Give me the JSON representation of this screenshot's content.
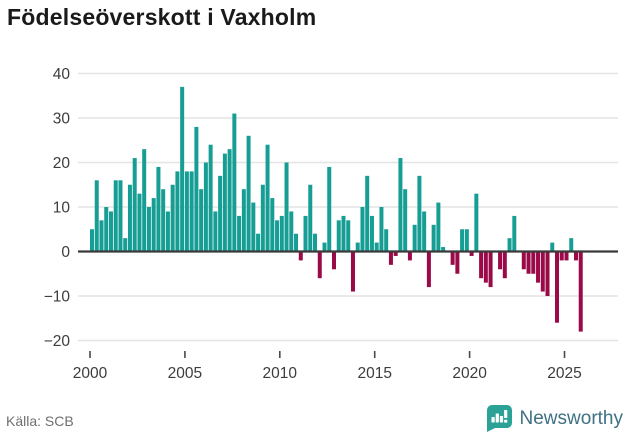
{
  "title": "Födelseöverskott i Vaxholm",
  "source": {
    "label": "Källa: SCB"
  },
  "branding": {
    "name": "Newsworthy",
    "logo": "bar-chart-speech-bubble"
  },
  "colors": {
    "positive_bar": "#179e94",
    "negative_bar": "#9b0a48",
    "zero_line": "#3a3a3a",
    "gridline": "#e4e4e4",
    "tick": "#4a4a4a",
    "axis_text": "#3c3c3c",
    "title_text": "#1a1a1a",
    "source_text": "#6f6f6f",
    "brand_text": "#3e7184",
    "brand_logo": "#2aa396"
  },
  "chart_data": {
    "type": "bar",
    "period": "quarterly",
    "start": "2000Q1",
    "end": "2025Q4",
    "grid": true,
    "ylim": [
      -20,
      40
    ],
    "y_ticks": [
      40,
      30,
      20,
      10,
      0,
      -10,
      -20
    ],
    "y_tick_labels": [
      "40",
      "30",
      "20",
      "10",
      "0",
      "−10",
      "−20"
    ],
    "x_tick_years": [
      2000,
      2005,
      2010,
      2015,
      2020,
      2025
    ],
    "x_tick_labels": [
      "2000",
      "2005",
      "2010",
      "2015",
      "2020",
      "2025"
    ],
    "series": [
      {
        "name": "Födelseöverskott",
        "values": [
          5,
          16,
          7,
          10,
          9,
          16,
          16,
          3,
          15,
          21,
          13,
          23,
          10,
          12,
          19,
          14,
          9,
          15,
          18,
          37,
          18,
          18,
          28,
          14,
          20,
          24,
          9,
          17,
          22,
          23,
          31,
          8,
          14,
          26,
          11,
          4,
          15,
          24,
          12,
          7,
          8,
          20,
          9,
          4,
          -2,
          8,
          15,
          4,
          -6,
          2,
          19,
          -4,
          7,
          8,
          7,
          -9,
          2,
          10,
          17,
          8,
          2,
          10,
          5,
          -3,
          -1,
          21,
          14,
          -2,
          6,
          17,
          9,
          -8,
          6,
          11,
          1,
          0,
          -3,
          -5,
          5,
          5,
          -1,
          13,
          -6,
          -7,
          -8,
          0,
          -4,
          -6,
          3,
          8,
          0,
          -4,
          -5,
          -5,
          -7,
          -9,
          -10,
          2,
          -16,
          -2,
          -2,
          3,
          -2,
          -18
        ]
      }
    ]
  }
}
